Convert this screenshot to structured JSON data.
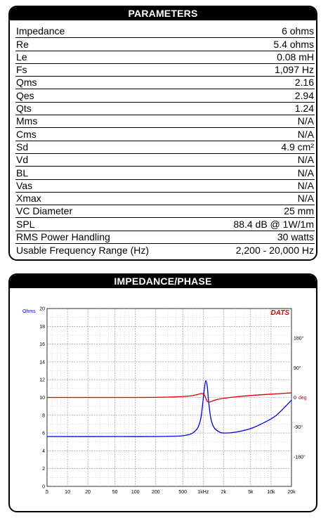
{
  "parameters": {
    "title": "PARAMETERS",
    "rows": [
      {
        "name": "Impedance",
        "value": "6 ohms"
      },
      {
        "name": "Re",
        "value": "5.4 ohms"
      },
      {
        "name": "Le",
        "value": "0.08 mH"
      },
      {
        "name": "Fs",
        "value": "1,097 Hz"
      },
      {
        "name": "Qms",
        "value": "2.16"
      },
      {
        "name": "Qes",
        "value": "2.94"
      },
      {
        "name": "Qts",
        "value": "1.24"
      },
      {
        "name": "Mms",
        "value": "N/A"
      },
      {
        "name": "Cms",
        "value": "N/A"
      },
      {
        "name": "Sd",
        "value": "4.9 cm²"
      },
      {
        "name": "Vd",
        "value": "N/A"
      },
      {
        "name": "BL",
        "value": "N/A"
      },
      {
        "name": "Vas",
        "value": "N/A"
      },
      {
        "name": "Xmax",
        "value": "N/A"
      },
      {
        "name": "VC Diameter",
        "value": "25 mm"
      },
      {
        "name": "SPL",
        "value": "88.4 dB @ 1W/1m"
      },
      {
        "name": "RMS Power Handling",
        "value": "30 watts"
      },
      {
        "name": "Usable Frequency Range (Hz)",
        "value": "2,200 - 20,000 Hz"
      }
    ]
  },
  "impedance_panel": {
    "title": "IMPEDANCE/PHASE",
    "logo": "DATS",
    "ohms_label": "Ohms",
    "deg_label": "deg"
  },
  "chart_data": {
    "type": "line",
    "x_scale": "log",
    "xlim": [
      5,
      20000
    ],
    "x_ticks": [
      "5",
      "10",
      "20",
      "50",
      "100",
      "200",
      "500",
      "1kHz",
      "2k",
      "5k",
      "10k",
      "20k"
    ],
    "x_tick_values": [
      5,
      10,
      20,
      50,
      100,
      200,
      500,
      1000,
      2000,
      5000,
      10000,
      20000
    ],
    "ylim": [
      0,
      20
    ],
    "y_ticks": [
      "0",
      "2",
      "4",
      "6",
      "8",
      "10",
      "12",
      "14",
      "16",
      "18",
      "20"
    ],
    "y2_ticks": [
      "180°",
      "90°",
      "0",
      "-90°",
      "-180°"
    ],
    "y2_tick_values": [
      180,
      90,
      0,
      -90,
      -180
    ],
    "y2lim": [
      -270,
      270
    ],
    "colors": {
      "impedance": "#0000ee",
      "phase": "#dd0000",
      "grid": "#999999"
    },
    "series": [
      {
        "name": "Ohms",
        "axis": "left",
        "x": [
          5,
          50,
          300,
          600,
          800,
          900,
          950,
          1000,
          1050,
          1097,
          1150,
          1200,
          1300,
          1450,
          1700,
          2000,
          3000,
          5000,
          8000,
          12000,
          20000
        ],
        "values": [
          5.6,
          5.6,
          5.62,
          5.8,
          6.4,
          7.3,
          8.3,
          9.8,
          11.2,
          11.9,
          11.2,
          9.6,
          7.6,
          6.6,
          6.15,
          6.0,
          6.1,
          6.5,
          7.2,
          8.0,
          9.7
        ]
      },
      {
        "name": "deg",
        "axis": "right",
        "x": [
          5,
          100,
          300,
          600,
          800,
          950,
          1050,
          1100,
          1150,
          1250,
          1400,
          1700,
          2500,
          5000,
          10000,
          20000
        ],
        "values": [
          0,
          0,
          1,
          4,
          8,
          12,
          6,
          -4,
          -12,
          -14,
          -10,
          -5,
          0,
          6,
          10,
          14
        ]
      }
    ]
  }
}
